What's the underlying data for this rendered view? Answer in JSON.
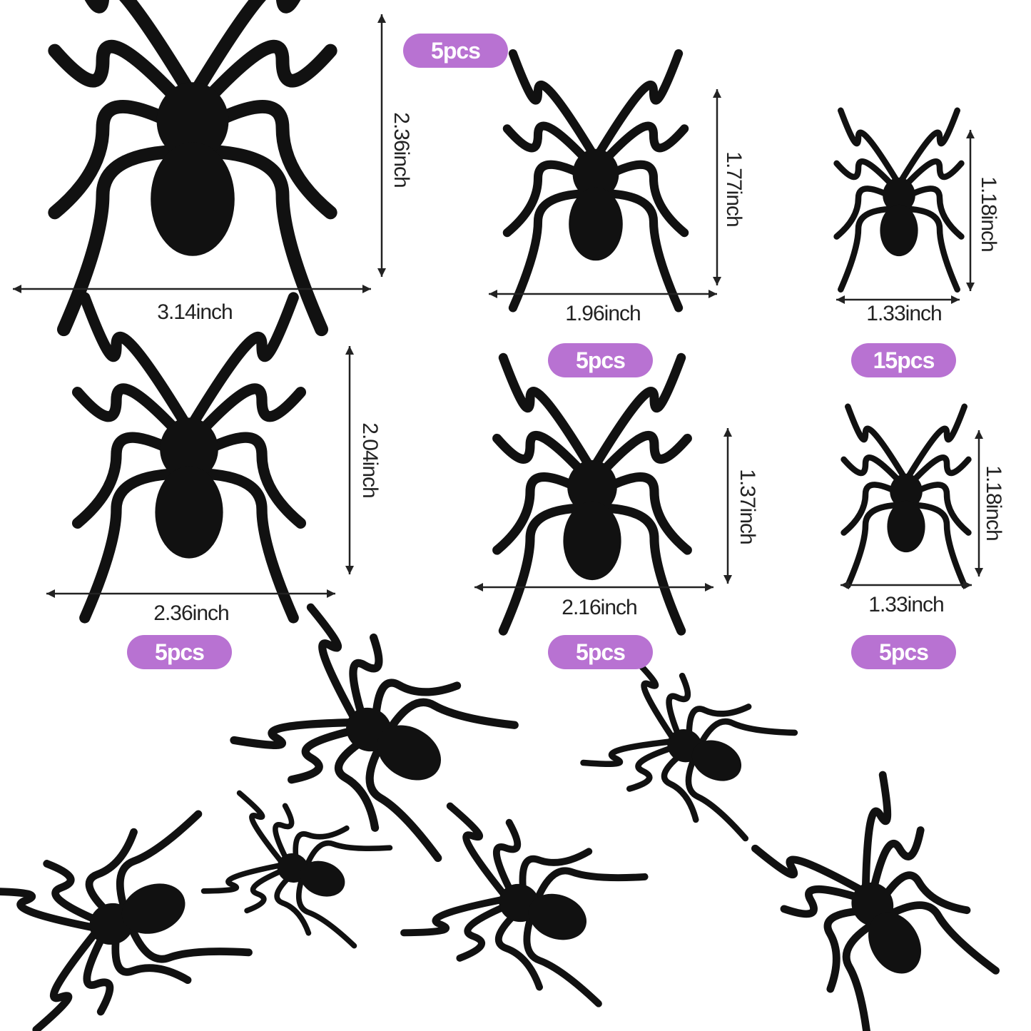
{
  "badge_color": "#b872d2",
  "spider_color": "#111111",
  "items": [
    {
      "width_label": "3.14inch",
      "height_label": "2.36inch",
      "quantity": "5pcs"
    },
    {
      "width_label": "1.96inch",
      "height_label": "1.77inch",
      "quantity": "5pcs"
    },
    {
      "width_label": "1.33inch",
      "height_label": "1.18inch",
      "quantity": "15pcs"
    },
    {
      "width_label": "2.36inch",
      "height_label": "2.04inch",
      "quantity": "5pcs"
    },
    {
      "width_label": "2.16inch",
      "height_label": "1.37inch",
      "quantity": "5pcs"
    },
    {
      "width_label": "1.33inch",
      "height_label": "1.18inch",
      "quantity": "5pcs"
    }
  ]
}
